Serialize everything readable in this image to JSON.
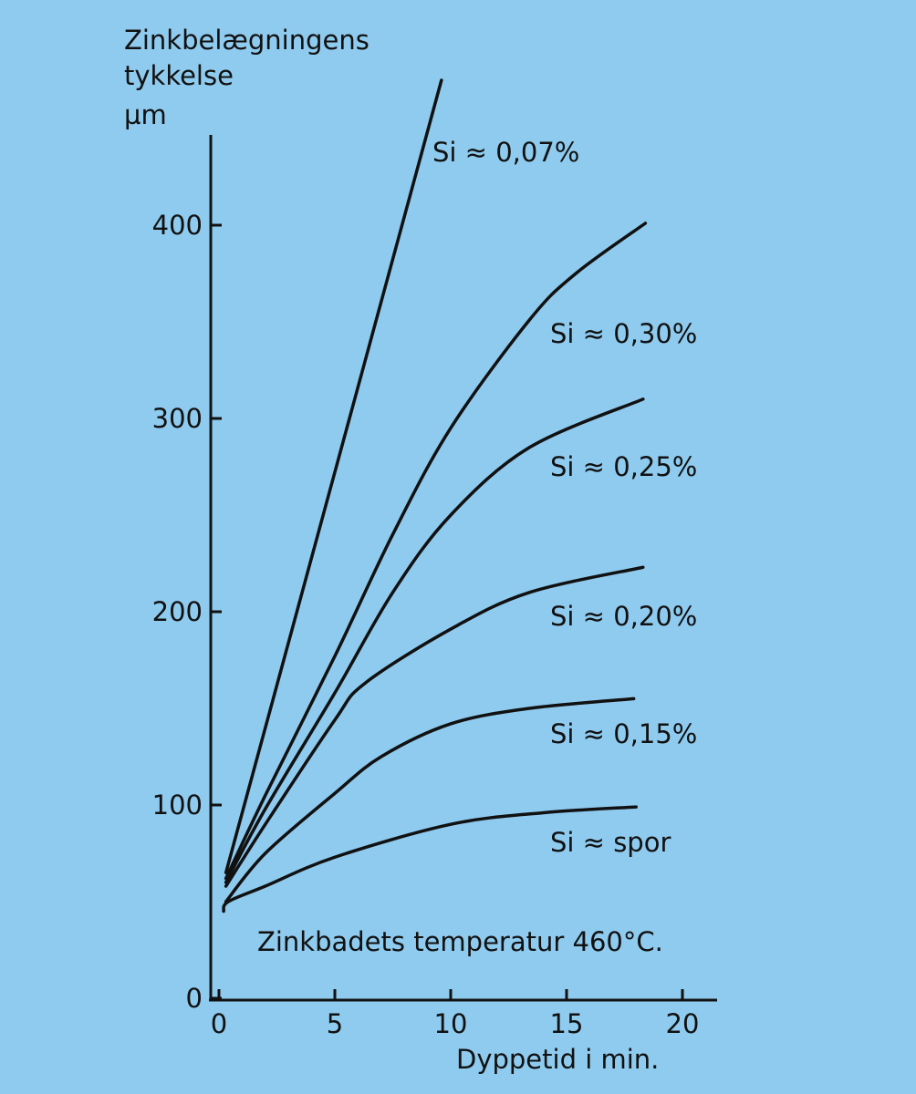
{
  "chart_data": {
    "type": "line",
    "title": "",
    "ylabel_lines": [
      "Zinkbelægningens",
      "tykkelse",
      "µm"
    ],
    "xlabel": "Dyppetid i min.",
    "annotation": "Zinkbadets temperatur 460°C.",
    "xlim": [
      0,
      20
    ],
    "ylim": [
      0,
      440
    ],
    "xticks": [
      0,
      5,
      10,
      15,
      20
    ],
    "yticks": [
      0,
      100,
      200,
      300,
      400
    ],
    "grid": false,
    "legend": "inline labels at curve ends",
    "background": "#8fcbef",
    "line_color": "#111111",
    "series": [
      {
        "name": "Si ≈ 0,07%",
        "x": [
          0.3,
          9.6
        ],
        "y": [
          65,
          475
        ]
      },
      {
        "name": "Si ≈ 0,30%",
        "x": [
          0.3,
          2,
          5,
          7.5,
          10,
          13.4,
          15.4,
          18.4
        ],
        "y": [
          62,
          105,
          177,
          240,
          295,
          351,
          375,
          401
        ]
      },
      {
        "name": "Si ≈ 0,25%",
        "x": [
          0.3,
          2,
          5,
          7.5,
          10,
          13.4,
          18.3
        ],
        "y": [
          60,
          98,
          158,
          210,
          250,
          285,
          310
        ]
      },
      {
        "name": "Si ≈ 0,20%",
        "x": [
          0.3,
          2,
          5,
          6.3,
          10,
          13.4,
          18.3
        ],
        "y": [
          58,
          90,
          144,
          163,
          191,
          210,
          223
        ]
      },
      {
        "name": "Si ≈ 0,15%",
        "x": [
          0.3,
          2,
          5,
          7,
          10,
          13.4,
          17.9
        ],
        "y": [
          50,
          75,
          106,
          125,
          142,
          150,
          155
        ]
      },
      {
        "name": "Si ≈ spor",
        "x": [
          0.2,
          0.4,
          2,
          5,
          10,
          14,
          18
        ],
        "y": [
          45,
          50,
          58,
          73,
          90,
          96,
          99
        ]
      }
    ],
    "label_positions_note": "labels sit right of each curve"
  }
}
